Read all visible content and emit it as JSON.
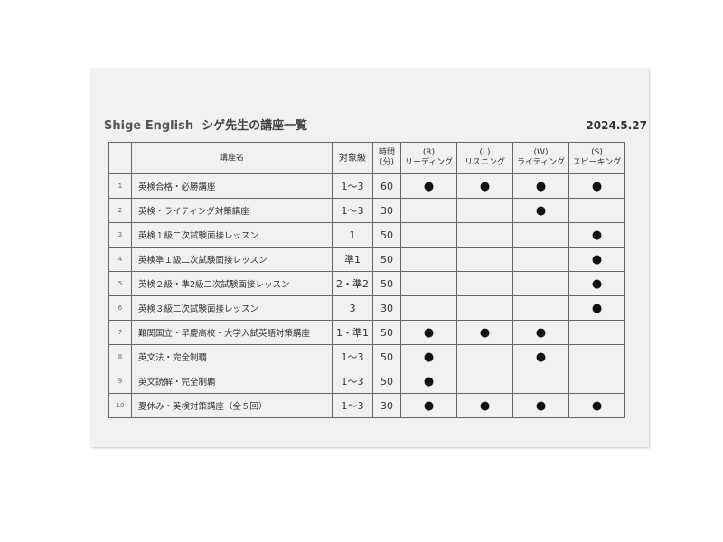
{
  "title": {
    "brand": "Shige English",
    "subtitle": "シゲ先生の講座一覧"
  },
  "date": "2024.5.27",
  "headers": {
    "name": "講座名",
    "level": "対象級",
    "time1": "時間",
    "time2": "(分)",
    "skills": [
      {
        "code": "(R)",
        "label": "リーディング"
      },
      {
        "code": "(L)",
        "label": "リスニング"
      },
      {
        "code": "(W)",
        "label": "ライティング"
      },
      {
        "code": "(S)",
        "label": "スピーキング"
      }
    ]
  },
  "dot_symbol": "●",
  "rows": [
    {
      "no": "1",
      "name": "英検合格・必勝講座",
      "level": "1～3",
      "time": "60",
      "skills": [
        1,
        1,
        1,
        1
      ]
    },
    {
      "no": "2",
      "name": "英検・ライティング対策講座",
      "level": "1～3",
      "time": "30",
      "skills": [
        0,
        0,
        1,
        0
      ]
    },
    {
      "no": "3",
      "name": "英検１級二次試験面接レッスン",
      "level": "1",
      "time": "50",
      "skills": [
        0,
        0,
        0,
        1
      ]
    },
    {
      "no": "4",
      "name": "英検準１級二次試験面接レッスン",
      "level": "準1",
      "time": "50",
      "skills": [
        0,
        0,
        0,
        1
      ]
    },
    {
      "no": "5",
      "name": "英検２級・準2級二次試験面接レッスン",
      "level": "2・準2",
      "time": "50",
      "skills": [
        0,
        0,
        0,
        1
      ]
    },
    {
      "no": "6",
      "name": "英検３級二次試験面接レッスン",
      "level": "3",
      "time": "30",
      "skills": [
        0,
        0,
        0,
        1
      ]
    },
    {
      "no": "7",
      "name": "難関国立・早慶高校・大学入試英語対策講座",
      "level": "1・準1",
      "time": "50",
      "skills": [
        1,
        1,
        1,
        0
      ]
    },
    {
      "no": "8",
      "name": "英文法・完全制覇",
      "level": "1～3",
      "time": "50",
      "skills": [
        1,
        0,
        1,
        0
      ]
    },
    {
      "no": "9",
      "name": "英文読解・完全制覇",
      "level": "1～3",
      "time": "50",
      "skills": [
        1,
        0,
        0,
        0
      ]
    },
    {
      "no": "10",
      "name": "夏休み・英検対策講座（全５回）",
      "level": "1～3",
      "time": "30",
      "skills": [
        1,
        1,
        1,
        1
      ]
    }
  ]
}
